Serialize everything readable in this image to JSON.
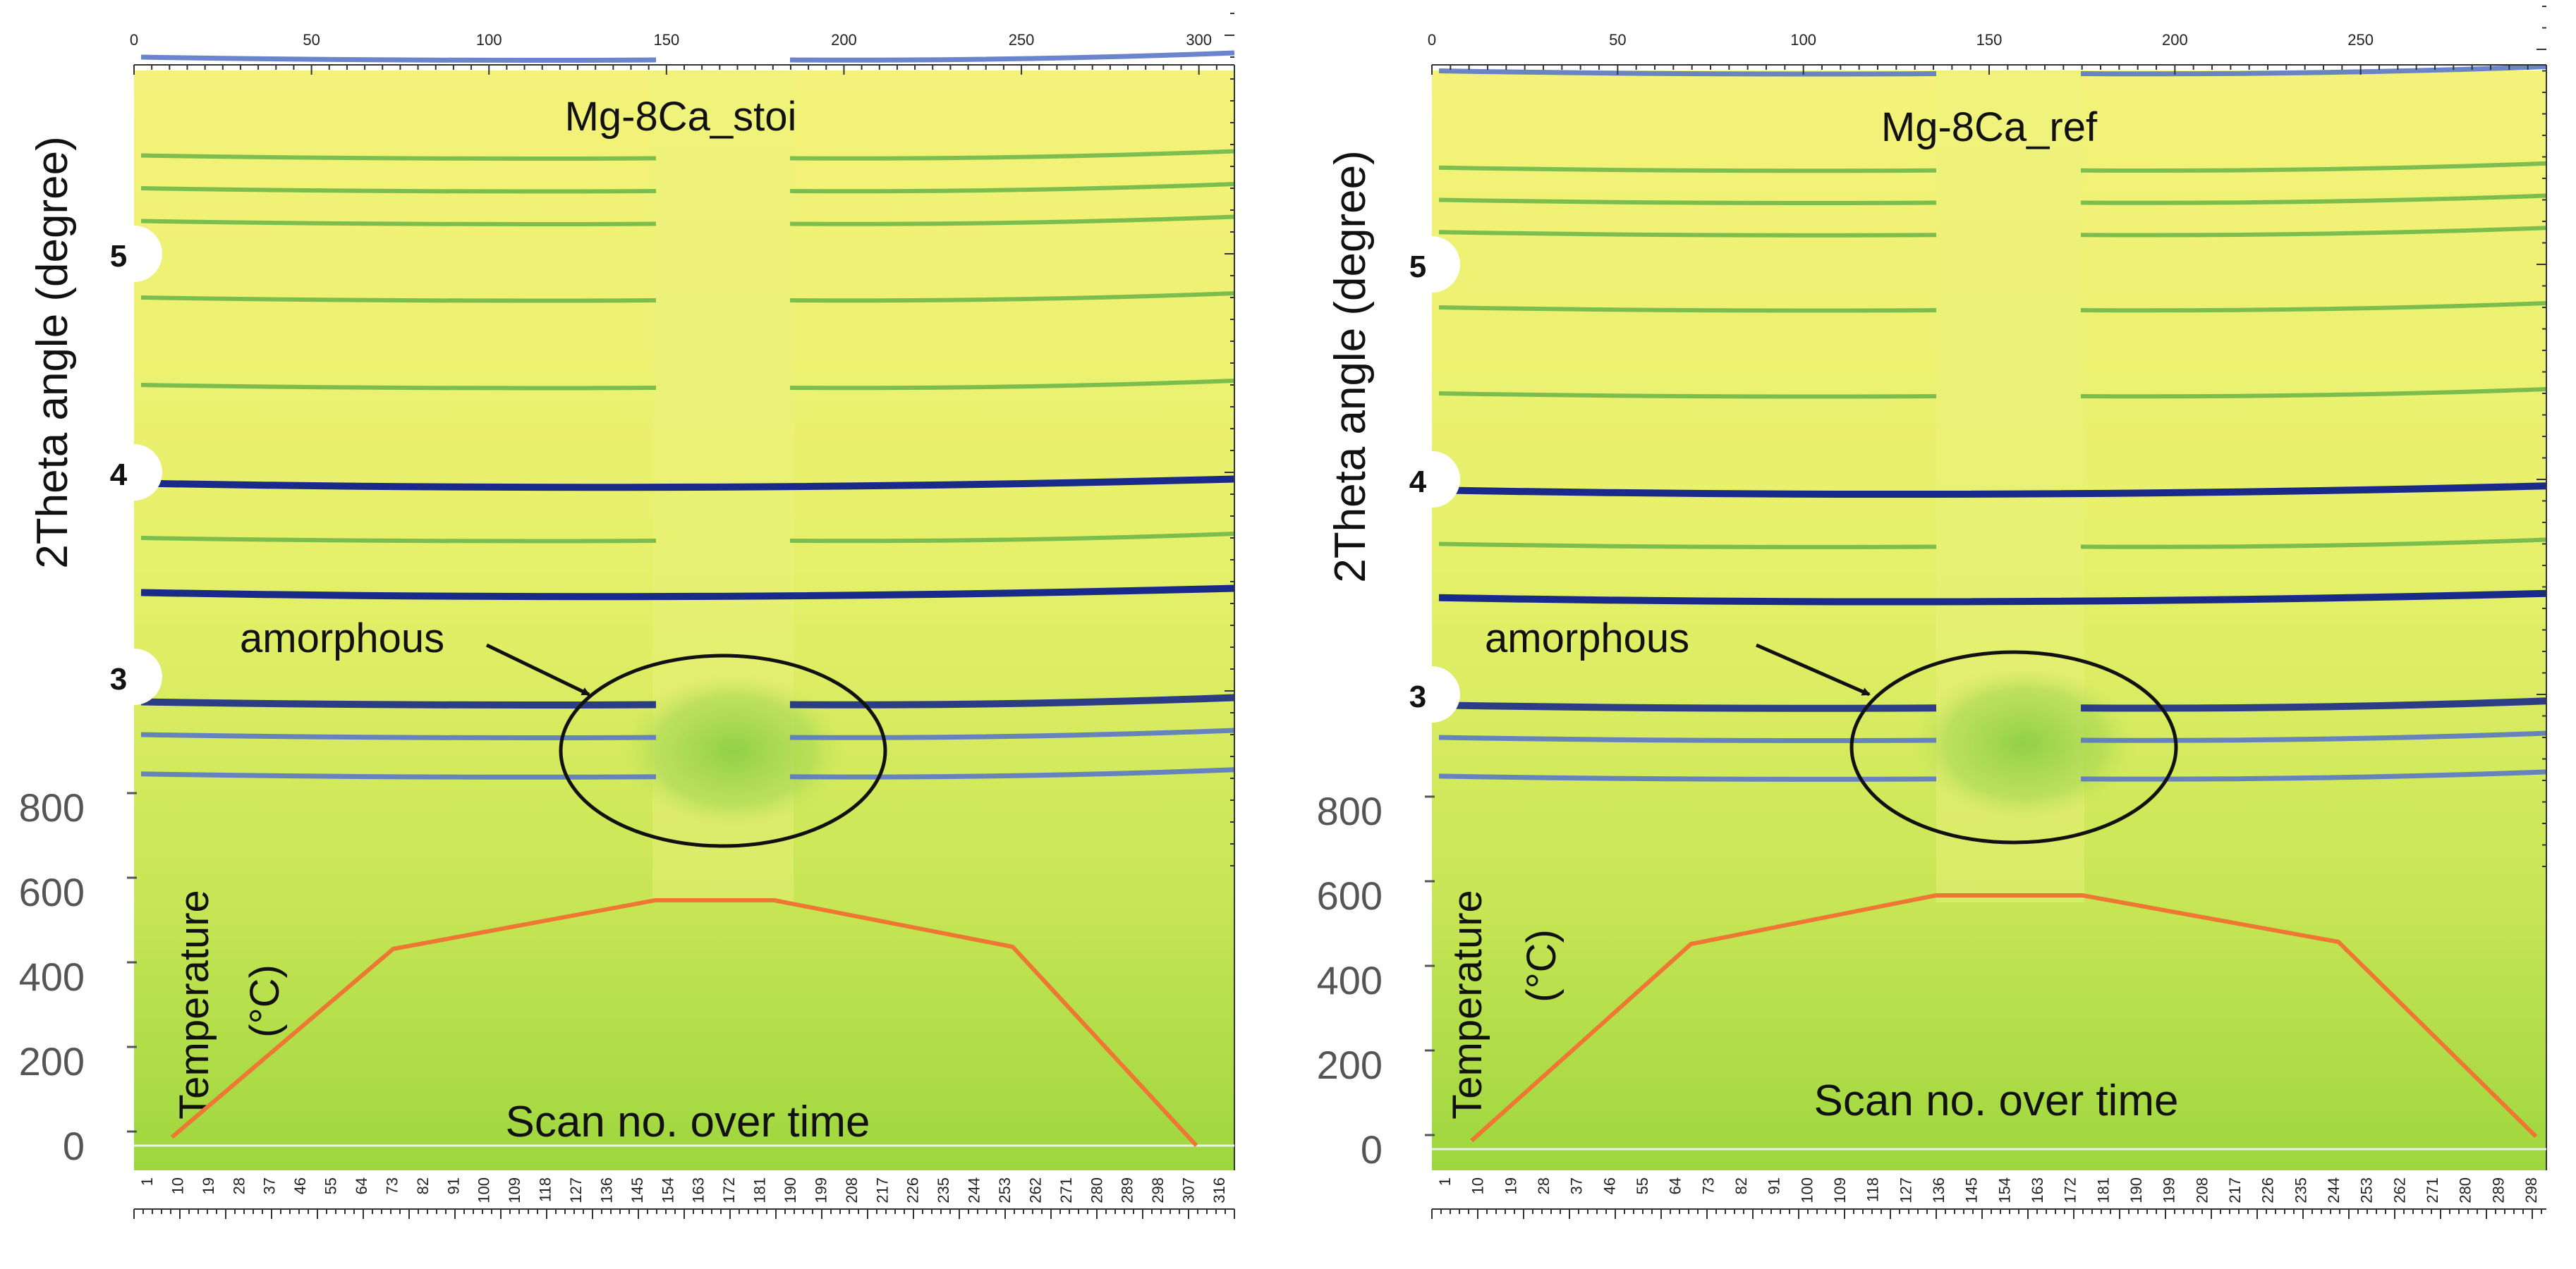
{
  "chart_data": [
    {
      "type": "heatmap",
      "title": "Mg-8Ca_stoi",
      "top_axis": {
        "range": [
          0,
          310
        ],
        "ticks": [
          0,
          50,
          100,
          150,
          200,
          250,
          300
        ]
      },
      "ylabel": "2Theta angle (degree)",
      "y_ticks": [
        "5",
        "4",
        "3"
      ],
      "annotation": "amorphous",
      "temperature_axis": {
        "label": "Temperature",
        "unit": "(°C)",
        "ticks": [
          "800",
          "600",
          "400",
          "200",
          "0"
        ],
        "range": [
          0,
          800
        ]
      },
      "xlabel": "Scan no. over time",
      "scan_labels": [
        "1",
        "10",
        "19",
        "28",
        "37",
        "46",
        "55",
        "64",
        "73",
        "82",
        "91",
        "100",
        "109",
        "118",
        "127",
        "136",
        "145",
        "154",
        "163",
        "172",
        "181",
        "190",
        "199",
        "208",
        "217",
        "226",
        "235",
        "244",
        "253",
        "262",
        "271",
        "280",
        "289",
        "298",
        "307",
        "316"
      ],
      "temperature_profile": {
        "scan": [
          8,
          73,
          150,
          185,
          255,
          309
        ],
        "temperature": [
          20,
          465,
          580,
          580,
          470,
          0
        ]
      },
      "diffraction_lines": [
        {
          "y": 5.9,
          "intensity": "medium"
        },
        {
          "y": 5.45,
          "intensity": "weak"
        },
        {
          "y": 5.3,
          "intensity": "weak"
        },
        {
          "y": 5.15,
          "intensity": "weak"
        },
        {
          "y": 4.8,
          "intensity": "weak"
        },
        {
          "y": 4.4,
          "intensity": "weak"
        },
        {
          "y": 3.95,
          "intensity": "strong"
        },
        {
          "y": 3.7,
          "intensity": "weak"
        },
        {
          "y": 3.45,
          "intensity": "strong"
        },
        {
          "y": 2.95,
          "intensity": "strong"
        },
        {
          "y": 2.8,
          "intensity": "medium"
        },
        {
          "y": 2.62,
          "intensity": "medium"
        }
      ]
    },
    {
      "type": "heatmap",
      "title": "Mg-8Ca_ref",
      "top_axis": {
        "range": [
          0,
          300
        ],
        "ticks": [
          0,
          50,
          100,
          150,
          200,
          250
        ]
      },
      "ylabel": "2Theta angle (degree)",
      "y_ticks": [
        "5",
        "4",
        "3"
      ],
      "annotation": "amorphous",
      "temperature_axis": {
        "label": "Temperature",
        "unit": "(°C)",
        "ticks": [
          "800",
          "600",
          "400",
          "200",
          "0"
        ],
        "range": [
          0,
          800
        ]
      },
      "xlabel": "Scan no. over time",
      "scan_labels": [
        "1",
        "10",
        "19",
        "28",
        "37",
        "46",
        "55",
        "64",
        "73",
        "82",
        "91",
        "100",
        "109",
        "118",
        "127",
        "136",
        "145",
        "154",
        "163",
        "172",
        "181",
        "190",
        "199",
        "208",
        "217",
        "226",
        "235",
        "244",
        "253",
        "262",
        "271",
        "280",
        "289",
        "298"
      ],
      "temperature_profile": {
        "scan": [
          8,
          68,
          135,
          175,
          245,
          299
        ],
        "temperature": [
          20,
          485,
          600,
          600,
          490,
          30
        ]
      },
      "diffraction_lines": [
        {
          "y": 5.9,
          "intensity": "medium"
        },
        {
          "y": 5.45,
          "intensity": "weak"
        },
        {
          "y": 5.3,
          "intensity": "weak"
        },
        {
          "y": 5.15,
          "intensity": "weak"
        },
        {
          "y": 4.8,
          "intensity": "weak"
        },
        {
          "y": 4.4,
          "intensity": "weak"
        },
        {
          "y": 3.95,
          "intensity": "strong"
        },
        {
          "y": 3.7,
          "intensity": "weak"
        },
        {
          "y": 3.45,
          "intensity": "strong"
        },
        {
          "y": 2.95,
          "intensity": "strong"
        },
        {
          "y": 2.8,
          "intensity": "medium"
        },
        {
          "y": 2.62,
          "intensity": "medium"
        }
      ]
    }
  ]
}
